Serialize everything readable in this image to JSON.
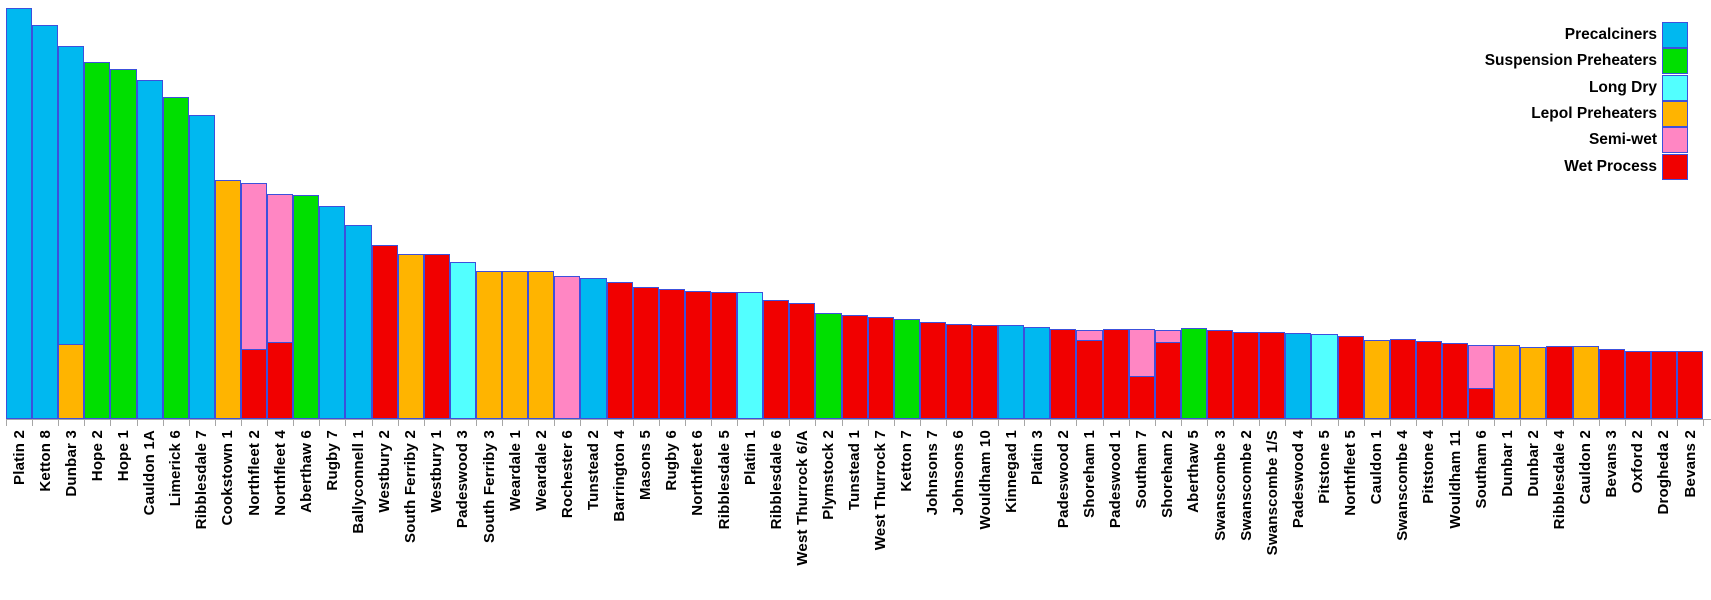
{
  "styles": {
    "bar_border_color": "#3C50DC",
    "axis_color": "#A6A6A6",
    "background": "#FFFFFF",
    "palette": {
      "precalciners": "#00B8F0",
      "suspension": "#00DF00",
      "longdry": "#52FFFF",
      "lepol": "#FFB400",
      "semiwet": "#FF86C3",
      "wet": "#F10000"
    }
  },
  "chart_data": {
    "type": "bar",
    "stacked": true,
    "title": "",
    "xlabel": "",
    "ylabel": "",
    "y_axis_shown": false,
    "value_units": "relative bar height (no y-axis or gridlines shown; values estimated in pixels, baseline=0, tallest=411)",
    "ylim": [
      0,
      419
    ],
    "grid": false,
    "legend_position": "top-right",
    "legend": [
      {
        "label": "Precalciners",
        "process": "precalciners"
      },
      {
        "label": "Suspension Preheaters",
        "process": "suspension"
      },
      {
        "label": "Long Dry",
        "process": "longdry"
      },
      {
        "label": "Lepol Preheaters",
        "process": "lepol"
      },
      {
        "label": "Semi-wet",
        "process": "semiwet"
      },
      {
        "label": "Wet Process",
        "process": "wet"
      }
    ],
    "bars": [
      {
        "label": "Platin 2",
        "segments": [
          {
            "process": "precalciners",
            "value": 411
          }
        ]
      },
      {
        "label": "Ketton 8",
        "segments": [
          {
            "process": "precalciners",
            "value": 394
          }
        ]
      },
      {
        "label": "Dunbar 3",
        "segments": [
          {
            "process": "lepol",
            "value": 75
          },
          {
            "process": "precalciners",
            "value": 299
          }
        ]
      },
      {
        "label": "Hope 2",
        "segments": [
          {
            "process": "suspension",
            "value": 357
          }
        ]
      },
      {
        "label": "Hope 1",
        "segments": [
          {
            "process": "suspension",
            "value": 350
          }
        ]
      },
      {
        "label": "Cauldon 1A",
        "segments": [
          {
            "process": "precalciners",
            "value": 339
          }
        ]
      },
      {
        "label": "Limerick 6",
        "segments": [
          {
            "process": "suspension",
            "value": 322
          }
        ]
      },
      {
        "label": "Ribblesdale 7",
        "segments": [
          {
            "process": "precalciners",
            "value": 304
          }
        ]
      },
      {
        "label": "Cookstown 1",
        "segments": [
          {
            "process": "lepol",
            "value": 239
          }
        ]
      },
      {
        "label": "Northfleet 2",
        "segments": [
          {
            "process": "wet",
            "value": 70
          },
          {
            "process": "semiwet",
            "value": 167
          }
        ]
      },
      {
        "label": "Northfleet 4",
        "segments": [
          {
            "process": "wet",
            "value": 77
          },
          {
            "process": "semiwet",
            "value": 149
          }
        ]
      },
      {
        "label": "Aberthaw 6",
        "segments": [
          {
            "process": "suspension",
            "value": 224
          }
        ]
      },
      {
        "label": "Rugby 7",
        "segments": [
          {
            "process": "precalciners",
            "value": 213
          }
        ]
      },
      {
        "label": "Ballyconnell 1",
        "segments": [
          {
            "process": "precalciners",
            "value": 194
          }
        ]
      },
      {
        "label": "Westbury 2",
        "segments": [
          {
            "process": "wet",
            "value": 174
          }
        ]
      },
      {
        "label": "South Ferriby 2",
        "segments": [
          {
            "process": "lepol",
            "value": 165
          }
        ]
      },
      {
        "label": "Westbury 1",
        "segments": [
          {
            "process": "wet",
            "value": 165
          }
        ]
      },
      {
        "label": "Padeswood 3",
        "segments": [
          {
            "process": "longdry",
            "value": 157
          }
        ]
      },
      {
        "label": "South Ferriby 3",
        "segments": [
          {
            "process": "lepol",
            "value": 148
          }
        ]
      },
      {
        "label": "Weardale 1",
        "segments": [
          {
            "process": "lepol",
            "value": 148
          }
        ]
      },
      {
        "label": "Weardale 2",
        "segments": [
          {
            "process": "lepol",
            "value": 148
          }
        ]
      },
      {
        "label": "Rochester 6",
        "segments": [
          {
            "process": "semiwet",
            "value": 143
          }
        ]
      },
      {
        "label": "Tunstead 2",
        "segments": [
          {
            "process": "precalciners",
            "value": 141
          }
        ]
      },
      {
        "label": "Barrington 4",
        "segments": [
          {
            "process": "wet",
            "value": 137
          }
        ]
      },
      {
        "label": "Masons 5",
        "segments": [
          {
            "process": "wet",
            "value": 132
          }
        ]
      },
      {
        "label": "Rugby 6",
        "segments": [
          {
            "process": "wet",
            "value": 130
          }
        ]
      },
      {
        "label": "Northfleet 6",
        "segments": [
          {
            "process": "wet",
            "value": 128
          }
        ]
      },
      {
        "label": "Ribblesdale 5",
        "segments": [
          {
            "process": "wet",
            "value": 127
          }
        ]
      },
      {
        "label": "Platin 1",
        "segments": [
          {
            "process": "longdry",
            "value": 127
          }
        ]
      },
      {
        "label": "Ribblesdale 6",
        "segments": [
          {
            "process": "wet",
            "value": 119
          }
        ]
      },
      {
        "label": "West Thurrock 6/A",
        "segments": [
          {
            "process": "wet",
            "value": 116
          }
        ]
      },
      {
        "label": "Plymstock 2",
        "segments": [
          {
            "process": "suspension",
            "value": 106
          }
        ]
      },
      {
        "label": "Tunstead 1",
        "segments": [
          {
            "process": "wet",
            "value": 104
          }
        ]
      },
      {
        "label": "West Thurrock 7",
        "segments": [
          {
            "process": "wet",
            "value": 102
          }
        ]
      },
      {
        "label": "Ketton 7",
        "segments": [
          {
            "process": "suspension",
            "value": 100
          }
        ]
      },
      {
        "label": "Johnsons 7",
        "segments": [
          {
            "process": "wet",
            "value": 97
          }
        ]
      },
      {
        "label": "Johnsons 6",
        "segments": [
          {
            "process": "wet",
            "value": 95
          }
        ]
      },
      {
        "label": "Wouldham 10",
        "segments": [
          {
            "process": "wet",
            "value": 94
          }
        ]
      },
      {
        "label": "Kinnegad 1",
        "segments": [
          {
            "process": "precalciners",
            "value": 94
          }
        ]
      },
      {
        "label": "Platin 3",
        "segments": [
          {
            "process": "precalciners",
            "value": 92
          }
        ]
      },
      {
        "label": "Padeswood 2",
        "segments": [
          {
            "process": "wet",
            "value": 90
          }
        ]
      },
      {
        "label": "Shoreham 1",
        "segments": [
          {
            "process": "wet",
            "value": 79
          },
          {
            "process": "semiwet",
            "value": 11
          }
        ]
      },
      {
        "label": "Padeswood 1",
        "segments": [
          {
            "process": "wet",
            "value": 90
          }
        ]
      },
      {
        "label": "Southam 7",
        "segments": [
          {
            "process": "wet",
            "value": 43
          },
          {
            "process": "semiwet",
            "value": 48
          }
        ]
      },
      {
        "label": "Shoreham 2",
        "segments": [
          {
            "process": "wet",
            "value": 77
          },
          {
            "process": "semiwet",
            "value": 13
          }
        ]
      },
      {
        "label": "Aberthaw 5",
        "segments": [
          {
            "process": "suspension",
            "value": 91
          }
        ]
      },
      {
        "label": "Swanscombe 3",
        "segments": [
          {
            "process": "wet",
            "value": 89
          }
        ]
      },
      {
        "label": "Swanscombe 2",
        "segments": [
          {
            "process": "wet",
            "value": 87
          }
        ]
      },
      {
        "label": "Swanscombe 1/S",
        "segments": [
          {
            "process": "wet",
            "value": 87
          }
        ]
      },
      {
        "label": "Padeswood 4",
        "segments": [
          {
            "process": "precalciners",
            "value": 86
          }
        ]
      },
      {
        "label": "Pitstone 5",
        "segments": [
          {
            "process": "longdry",
            "value": 85
          }
        ]
      },
      {
        "label": "Northfleet 5",
        "segments": [
          {
            "process": "wet",
            "value": 83
          }
        ]
      },
      {
        "label": "Cauldon 1",
        "segments": [
          {
            "process": "lepol",
            "value": 79
          }
        ]
      },
      {
        "label": "Swanscombe 4",
        "segments": [
          {
            "process": "wet",
            "value": 80
          }
        ]
      },
      {
        "label": "Pitstone 4",
        "segments": [
          {
            "process": "wet",
            "value": 78
          }
        ]
      },
      {
        "label": "Wouldham 11",
        "segments": [
          {
            "process": "wet",
            "value": 76
          }
        ]
      },
      {
        "label": "Southam 6",
        "segments": [
          {
            "process": "wet",
            "value": 31
          },
          {
            "process": "semiwet",
            "value": 44
          }
        ]
      },
      {
        "label": "Dunbar 1",
        "segments": [
          {
            "process": "lepol",
            "value": 74
          }
        ]
      },
      {
        "label": "Dunbar 2",
        "segments": [
          {
            "process": "lepol",
            "value": 72
          }
        ]
      },
      {
        "label": "Ribblesdale 4",
        "segments": [
          {
            "process": "wet",
            "value": 73
          }
        ]
      },
      {
        "label": "Cauldon 2",
        "segments": [
          {
            "process": "lepol",
            "value": 73
          }
        ]
      },
      {
        "label": "Bevans 3",
        "segments": [
          {
            "process": "wet",
            "value": 70
          }
        ]
      },
      {
        "label": "Oxford 2",
        "segments": [
          {
            "process": "wet",
            "value": 68
          }
        ]
      },
      {
        "label": "Drogheda 2",
        "segments": [
          {
            "process": "wet",
            "value": 68
          }
        ]
      },
      {
        "label": "Bevans 2",
        "segments": [
          {
            "process": "wet",
            "value": 68
          }
        ]
      }
    ]
  }
}
